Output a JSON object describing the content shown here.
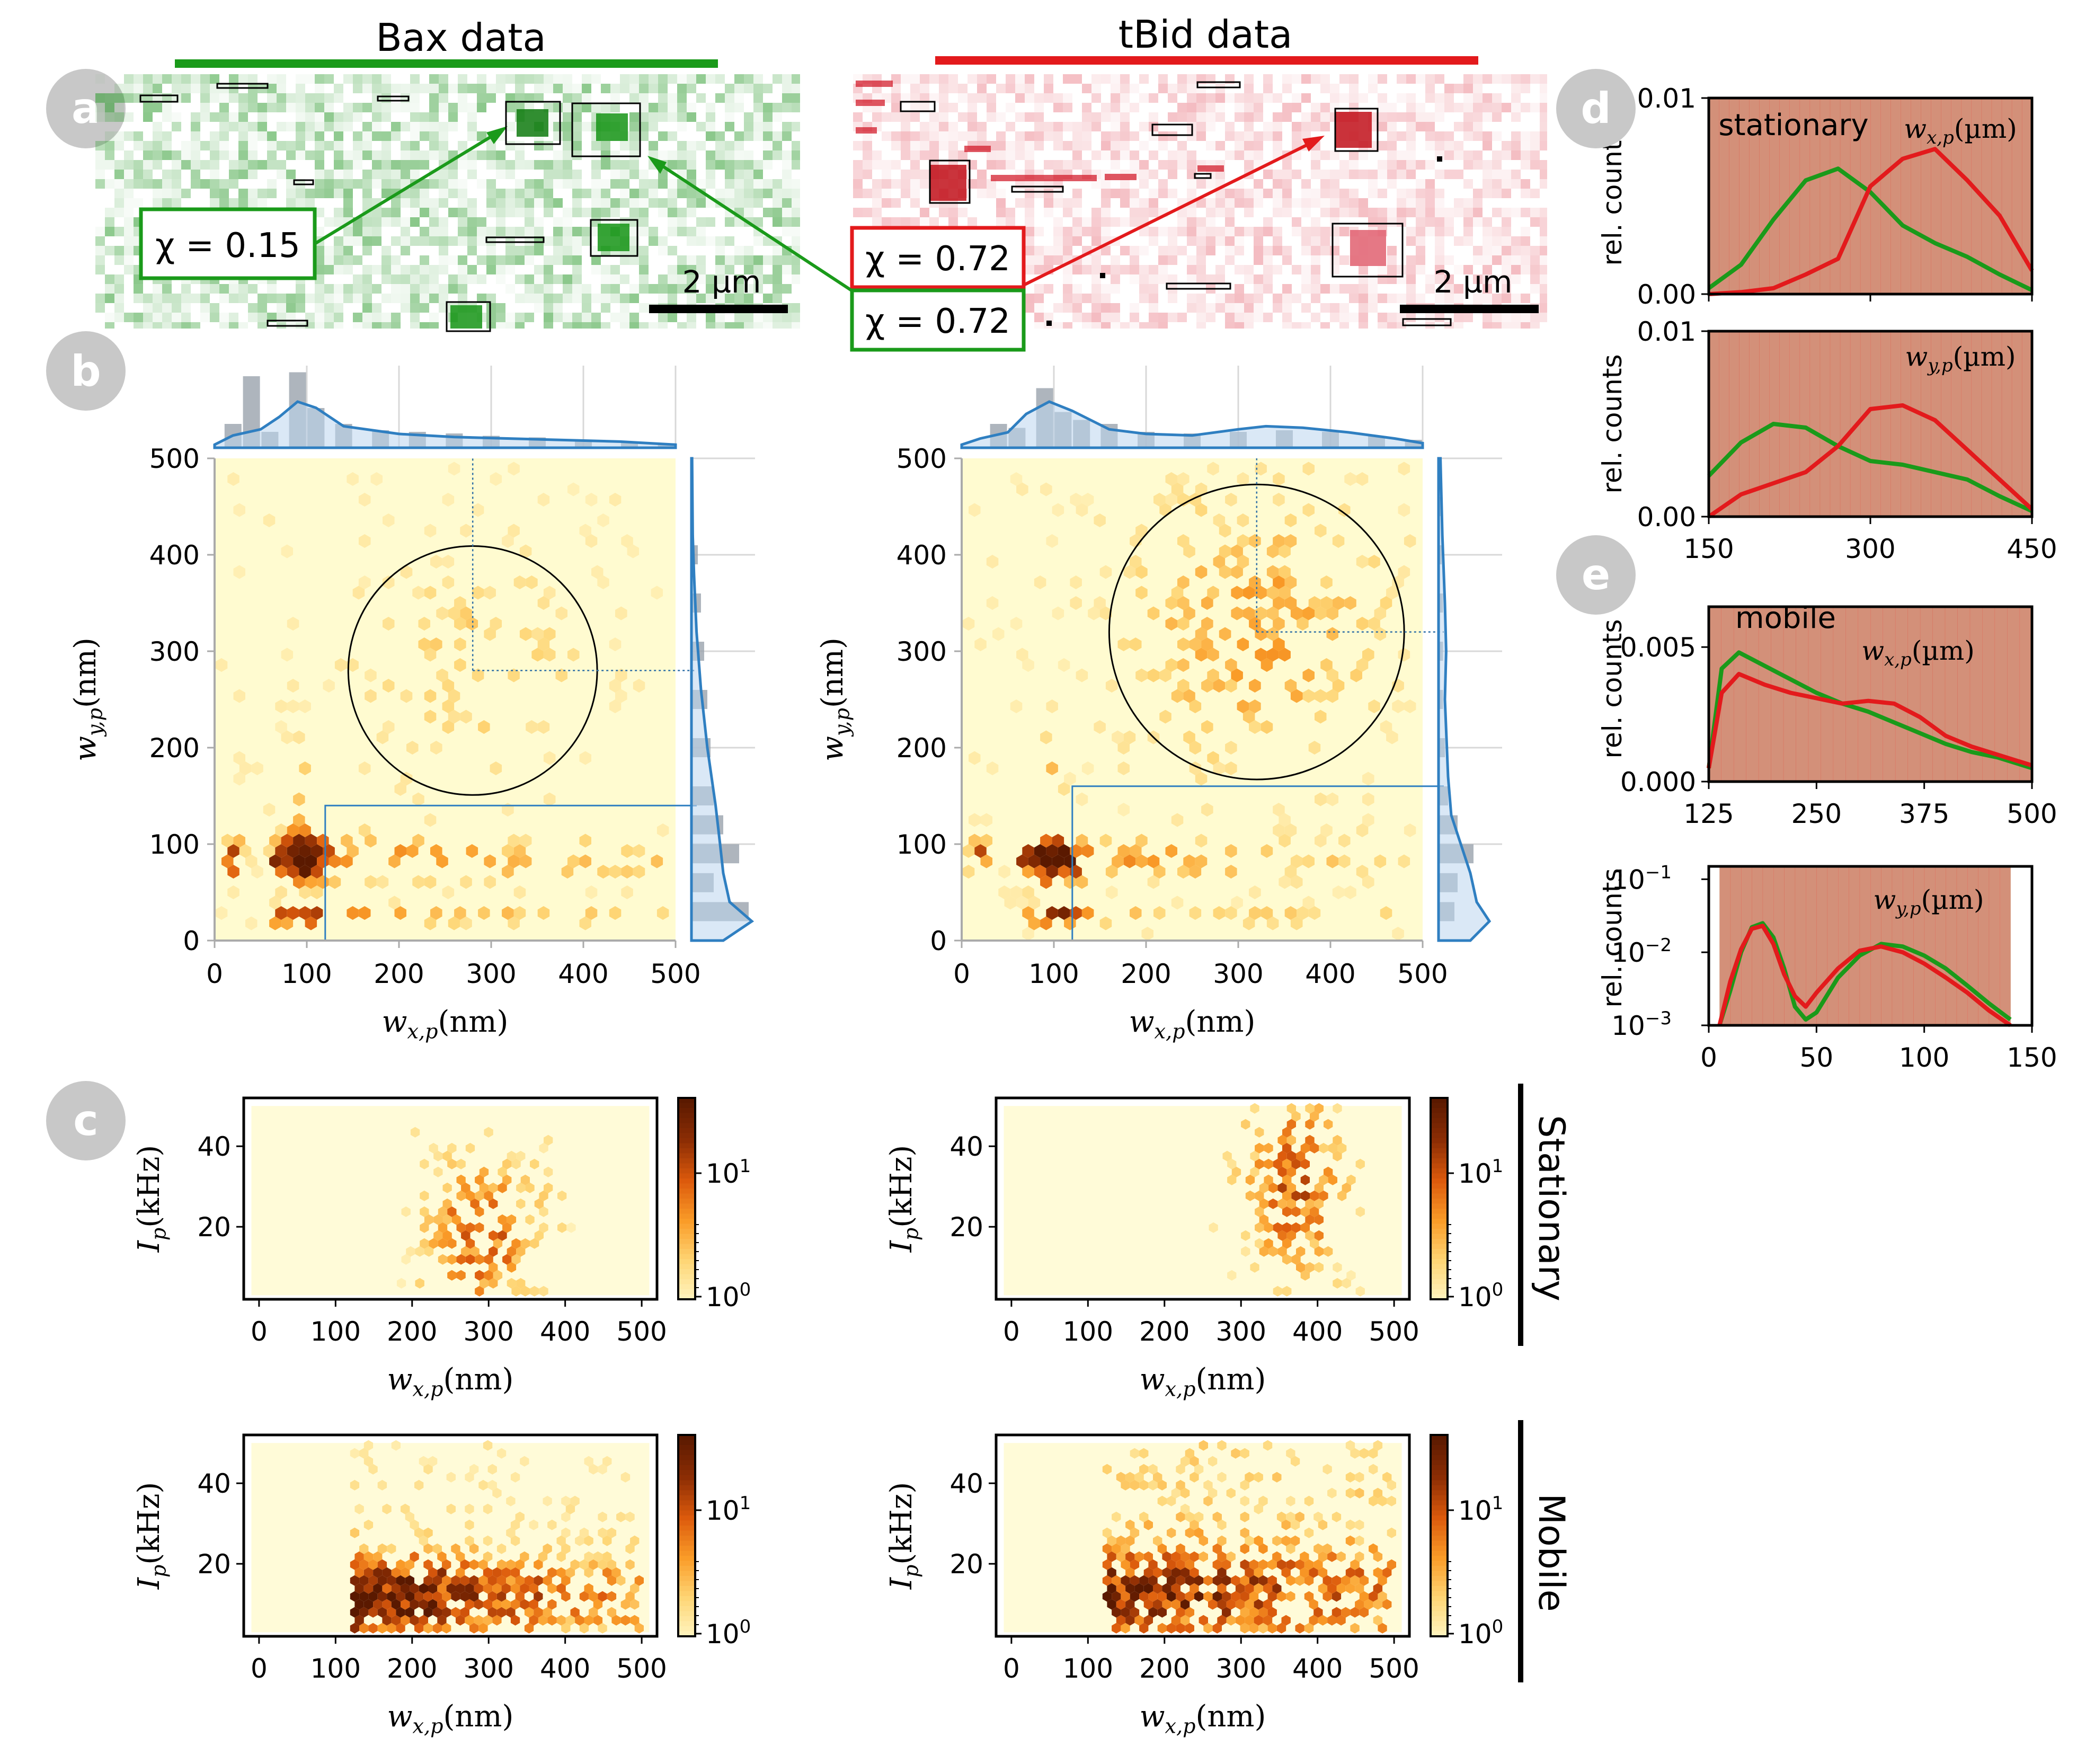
{
  "headers": {
    "bax": "Bax data",
    "tbid": "tBid data"
  },
  "colors": {
    "bax": "#1a9a1a",
    "tbid": "#e31a1c",
    "panel_letter_bg": "#c8c8c8",
    "hex_low": "#fff6c4",
    "hex_high": "#7a2a04",
    "kde": "#2f7fc1",
    "hist_gray": "#a6afb8"
  },
  "panel_letters": {
    "a": "a",
    "b": "b",
    "c": "c",
    "d": "d",
    "e": "e"
  },
  "panel_a": {
    "scale_bar": "2 µm",
    "chi_bax": "χ = 0.15",
    "chi_tbid_red": "χ = 0.72",
    "chi_tbid_green": "χ = 0.72"
  },
  "panel_b": {
    "xlabel": "w",
    "xlabel_sub": "x,p",
    "xlabel_unit": "(nm)",
    "ylabel": "w",
    "ylabel_sub": "y,p",
    "ylabel_unit": "(nm)"
  },
  "panel_c": {
    "ylabel": "I",
    "ylabel_sub": "p",
    "ylabel_unit": "(kHz)",
    "xlabel": "w",
    "xlabel_sub": "x,p",
    "xlabel_unit": "(nm)",
    "row_labels": {
      "stationary": "Stationary",
      "mobile": "Mobile"
    },
    "colorbar_ticks": [
      "10",
      "10"
    ],
    "colorbar_exp": [
      "0",
      "1"
    ]
  },
  "panel_d": {
    "ylabel": "rel. counts",
    "top_label": "stationary",
    "top_var": "w",
    "top_var_sub": "x,p",
    "bottom_var": "w",
    "bottom_var_sub": "y,p",
    "unit": "(µm)"
  },
  "panel_e": {
    "ylabel": "rel. counts",
    "top_label": "mobile",
    "top_var": "w",
    "top_var_sub": "x,p",
    "bottom_var": "w",
    "bottom_var_sub": "y,p",
    "unit": "(µm)"
  },
  "chart_data": [
    {
      "id": "b-bax",
      "type": "heatmap",
      "title": "",
      "xlabel": "w_x,p (nm)",
      "ylabel": "w_y,p (nm)",
      "xlim": [
        0,
        500
      ],
      "ylim": [
        0,
        500
      ],
      "xticks": [
        "0",
        "100",
        "200",
        "300",
        "400",
        "500"
      ],
      "yticks": [
        "0",
        "100",
        "200",
        "300",
        "400",
        "500"
      ],
      "circle": {
        "cx": 280,
        "cy": 280,
        "r": 135
      },
      "rect_from": {
        "x": 120,
        "y_max": 140
      }
    },
    {
      "id": "b-tbid",
      "type": "heatmap",
      "title": "",
      "xlabel": "w_x,p (nm)",
      "ylabel": "w_y,p (nm)",
      "xlim": [
        0,
        500
      ],
      "ylim": [
        0,
        500
      ],
      "xticks": [
        "0",
        "100",
        "200",
        "300",
        "400",
        "500"
      ],
      "yticks": [
        "0",
        "100",
        "200",
        "300",
        "400",
        "500"
      ],
      "circle": {
        "cx": 320,
        "cy": 320,
        "r": 160
      },
      "rect_from": {
        "x": 120,
        "y_max": 160
      }
    },
    {
      "id": "c-bax-stationary",
      "type": "heatmap",
      "xlim": [
        -20,
        520
      ],
      "ylim": [
        2,
        52
      ],
      "xticks": [
        "0",
        "100",
        "200",
        "300",
        "400",
        "500"
      ],
      "yticks": [
        "20",
        "40"
      ],
      "extent_x": [
        180,
        410
      ],
      "extent_y": [
        5,
        45
      ]
    },
    {
      "id": "c-tbid-stationary",
      "type": "heatmap",
      "xlim": [
        -20,
        520
      ],
      "ylim": [
        2,
        52
      ],
      "xticks": [
        "0",
        "100",
        "200",
        "300",
        "400",
        "500"
      ],
      "yticks": [
        "20",
        "40"
      ],
      "extent_x": [
        180,
        460
      ],
      "extent_y": [
        5,
        50
      ]
    },
    {
      "id": "c-bax-mobile",
      "type": "heatmap",
      "xlim": [
        -20,
        520
      ],
      "ylim": [
        2,
        52
      ],
      "xticks": [
        "0",
        "100",
        "200",
        "300",
        "400",
        "500"
      ],
      "yticks": [
        "20",
        "40"
      ],
      "extent_x": [
        125,
        500
      ],
      "extent_y": [
        5,
        50
      ]
    },
    {
      "id": "c-tbid-mobile",
      "type": "heatmap",
      "xlim": [
        -20,
        520
      ],
      "ylim": [
        2,
        52
      ],
      "xticks": [
        "0",
        "100",
        "200",
        "300",
        "400",
        "500"
      ],
      "yticks": [
        "20",
        "40"
      ],
      "extent_x": [
        125,
        500
      ],
      "extent_y": [
        5,
        50
      ]
    },
    {
      "id": "d-top",
      "type": "area",
      "xlim": [
        150,
        450
      ],
      "ylim": [
        0,
        0.01
      ],
      "xticks": [],
      "yticks": [
        "0.00",
        "0.01"
      ],
      "series": [
        {
          "name": "",
          "color": "#1a9a1a",
          "x": [
            150,
            180,
            210,
            240,
            270,
            300,
            330,
            360,
            390,
            420,
            450
          ],
          "y": [
            0.0003,
            0.0015,
            0.0038,
            0.0058,
            0.0064,
            0.0052,
            0.0035,
            0.0026,
            0.0019,
            0.001,
            0.0002
          ]
        },
        {
          "name": "",
          "color": "#e31a1c",
          "x": [
            150,
            180,
            210,
            240,
            270,
            300,
            330,
            360,
            390,
            420,
            450
          ],
          "y": [
            0.0,
            0.0001,
            0.0003,
            0.001,
            0.0018,
            0.0055,
            0.0069,
            0.0074,
            0.0058,
            0.004,
            0.0012
          ]
        }
      ]
    },
    {
      "id": "d-bottom",
      "type": "area",
      "xlim": [
        150,
        450
      ],
      "ylim": [
        0,
        0.01
      ],
      "xticks": [
        "150",
        "300",
        "450"
      ],
      "yticks": [
        "0.00",
        "0.01"
      ],
      "series": [
        {
          "name": "",
          "color": "#1a9a1a",
          "x": [
            150,
            180,
            210,
            240,
            270,
            300,
            330,
            360,
            390,
            420,
            450
          ],
          "y": [
            0.0022,
            0.004,
            0.005,
            0.0048,
            0.0038,
            0.003,
            0.0028,
            0.0024,
            0.002,
            0.0011,
            0.0003
          ]
        },
        {
          "name": "",
          "color": "#e31a1c",
          "x": [
            150,
            180,
            210,
            240,
            270,
            300,
            330,
            360,
            390,
            420,
            450
          ],
          "y": [
            0.0,
            0.0012,
            0.0018,
            0.0024,
            0.0038,
            0.0058,
            0.006,
            0.0052,
            0.0036,
            0.002,
            0.0004
          ]
        }
      ]
    },
    {
      "id": "e-top",
      "type": "area",
      "xlim": [
        125,
        500
      ],
      "ylim": [
        0,
        0.0065
      ],
      "xticks": [
        "125",
        "250",
        "375",
        "500"
      ],
      "yticks": [
        "0.000",
        "0.005"
      ],
      "series": [
        {
          "name": "",
          "color": "#1a9a1a",
          "x": [
            125,
            140,
            160,
            190,
            220,
            250,
            280,
            310,
            340,
            370,
            400,
            430,
            460,
            500
          ],
          "y": [
            0.0005,
            0.0042,
            0.0048,
            0.0043,
            0.0038,
            0.0033,
            0.0029,
            0.0026,
            0.0022,
            0.0018,
            0.0014,
            0.0011,
            0.0009,
            0.0005
          ]
        },
        {
          "name": "",
          "color": "#e31a1c",
          "x": [
            125,
            140,
            160,
            190,
            220,
            250,
            280,
            310,
            340,
            370,
            400,
            430,
            460,
            500
          ],
          "y": [
            0.0005,
            0.0033,
            0.004,
            0.0036,
            0.0033,
            0.0031,
            0.0029,
            0.003,
            0.0029,
            0.0024,
            0.0017,
            0.0013,
            0.001,
            0.0006
          ]
        }
      ]
    },
    {
      "id": "e-bottom",
      "type": "area",
      "scale": "log",
      "xlim": [
        0,
        150
      ],
      "ylim": [
        0.001,
        0.15
      ],
      "xticks": [
        "0",
        "50",
        "100",
        "150"
      ],
      "yticks_base": [
        "10",
        "10",
        "10"
      ],
      "yticks_exp": [
        "−3",
        "−2",
        "−1"
      ],
      "series": [
        {
          "name": "",
          "color": "#1a9a1a",
          "x": [
            5,
            10,
            15,
            20,
            25,
            30,
            35,
            40,
            45,
            50,
            60,
            70,
            80,
            90,
            100,
            110,
            120,
            130,
            140
          ],
          "y": [
            0.001,
            0.003,
            0.01,
            0.022,
            0.025,
            0.016,
            0.006,
            0.0018,
            0.0012,
            0.0015,
            0.0045,
            0.009,
            0.013,
            0.012,
            0.009,
            0.006,
            0.0035,
            0.002,
            0.0012
          ]
        },
        {
          "name": "",
          "color": "#e31a1c",
          "x": [
            5,
            10,
            15,
            20,
            25,
            30,
            35,
            40,
            45,
            50,
            60,
            70,
            80,
            90,
            100,
            110,
            120,
            130,
            140
          ],
          "y": [
            0.001,
            0.004,
            0.011,
            0.021,
            0.023,
            0.013,
            0.005,
            0.0025,
            0.0018,
            0.0028,
            0.006,
            0.0105,
            0.012,
            0.01,
            0.007,
            0.0045,
            0.0028,
            0.0016,
            0.001
          ]
        }
      ]
    }
  ]
}
